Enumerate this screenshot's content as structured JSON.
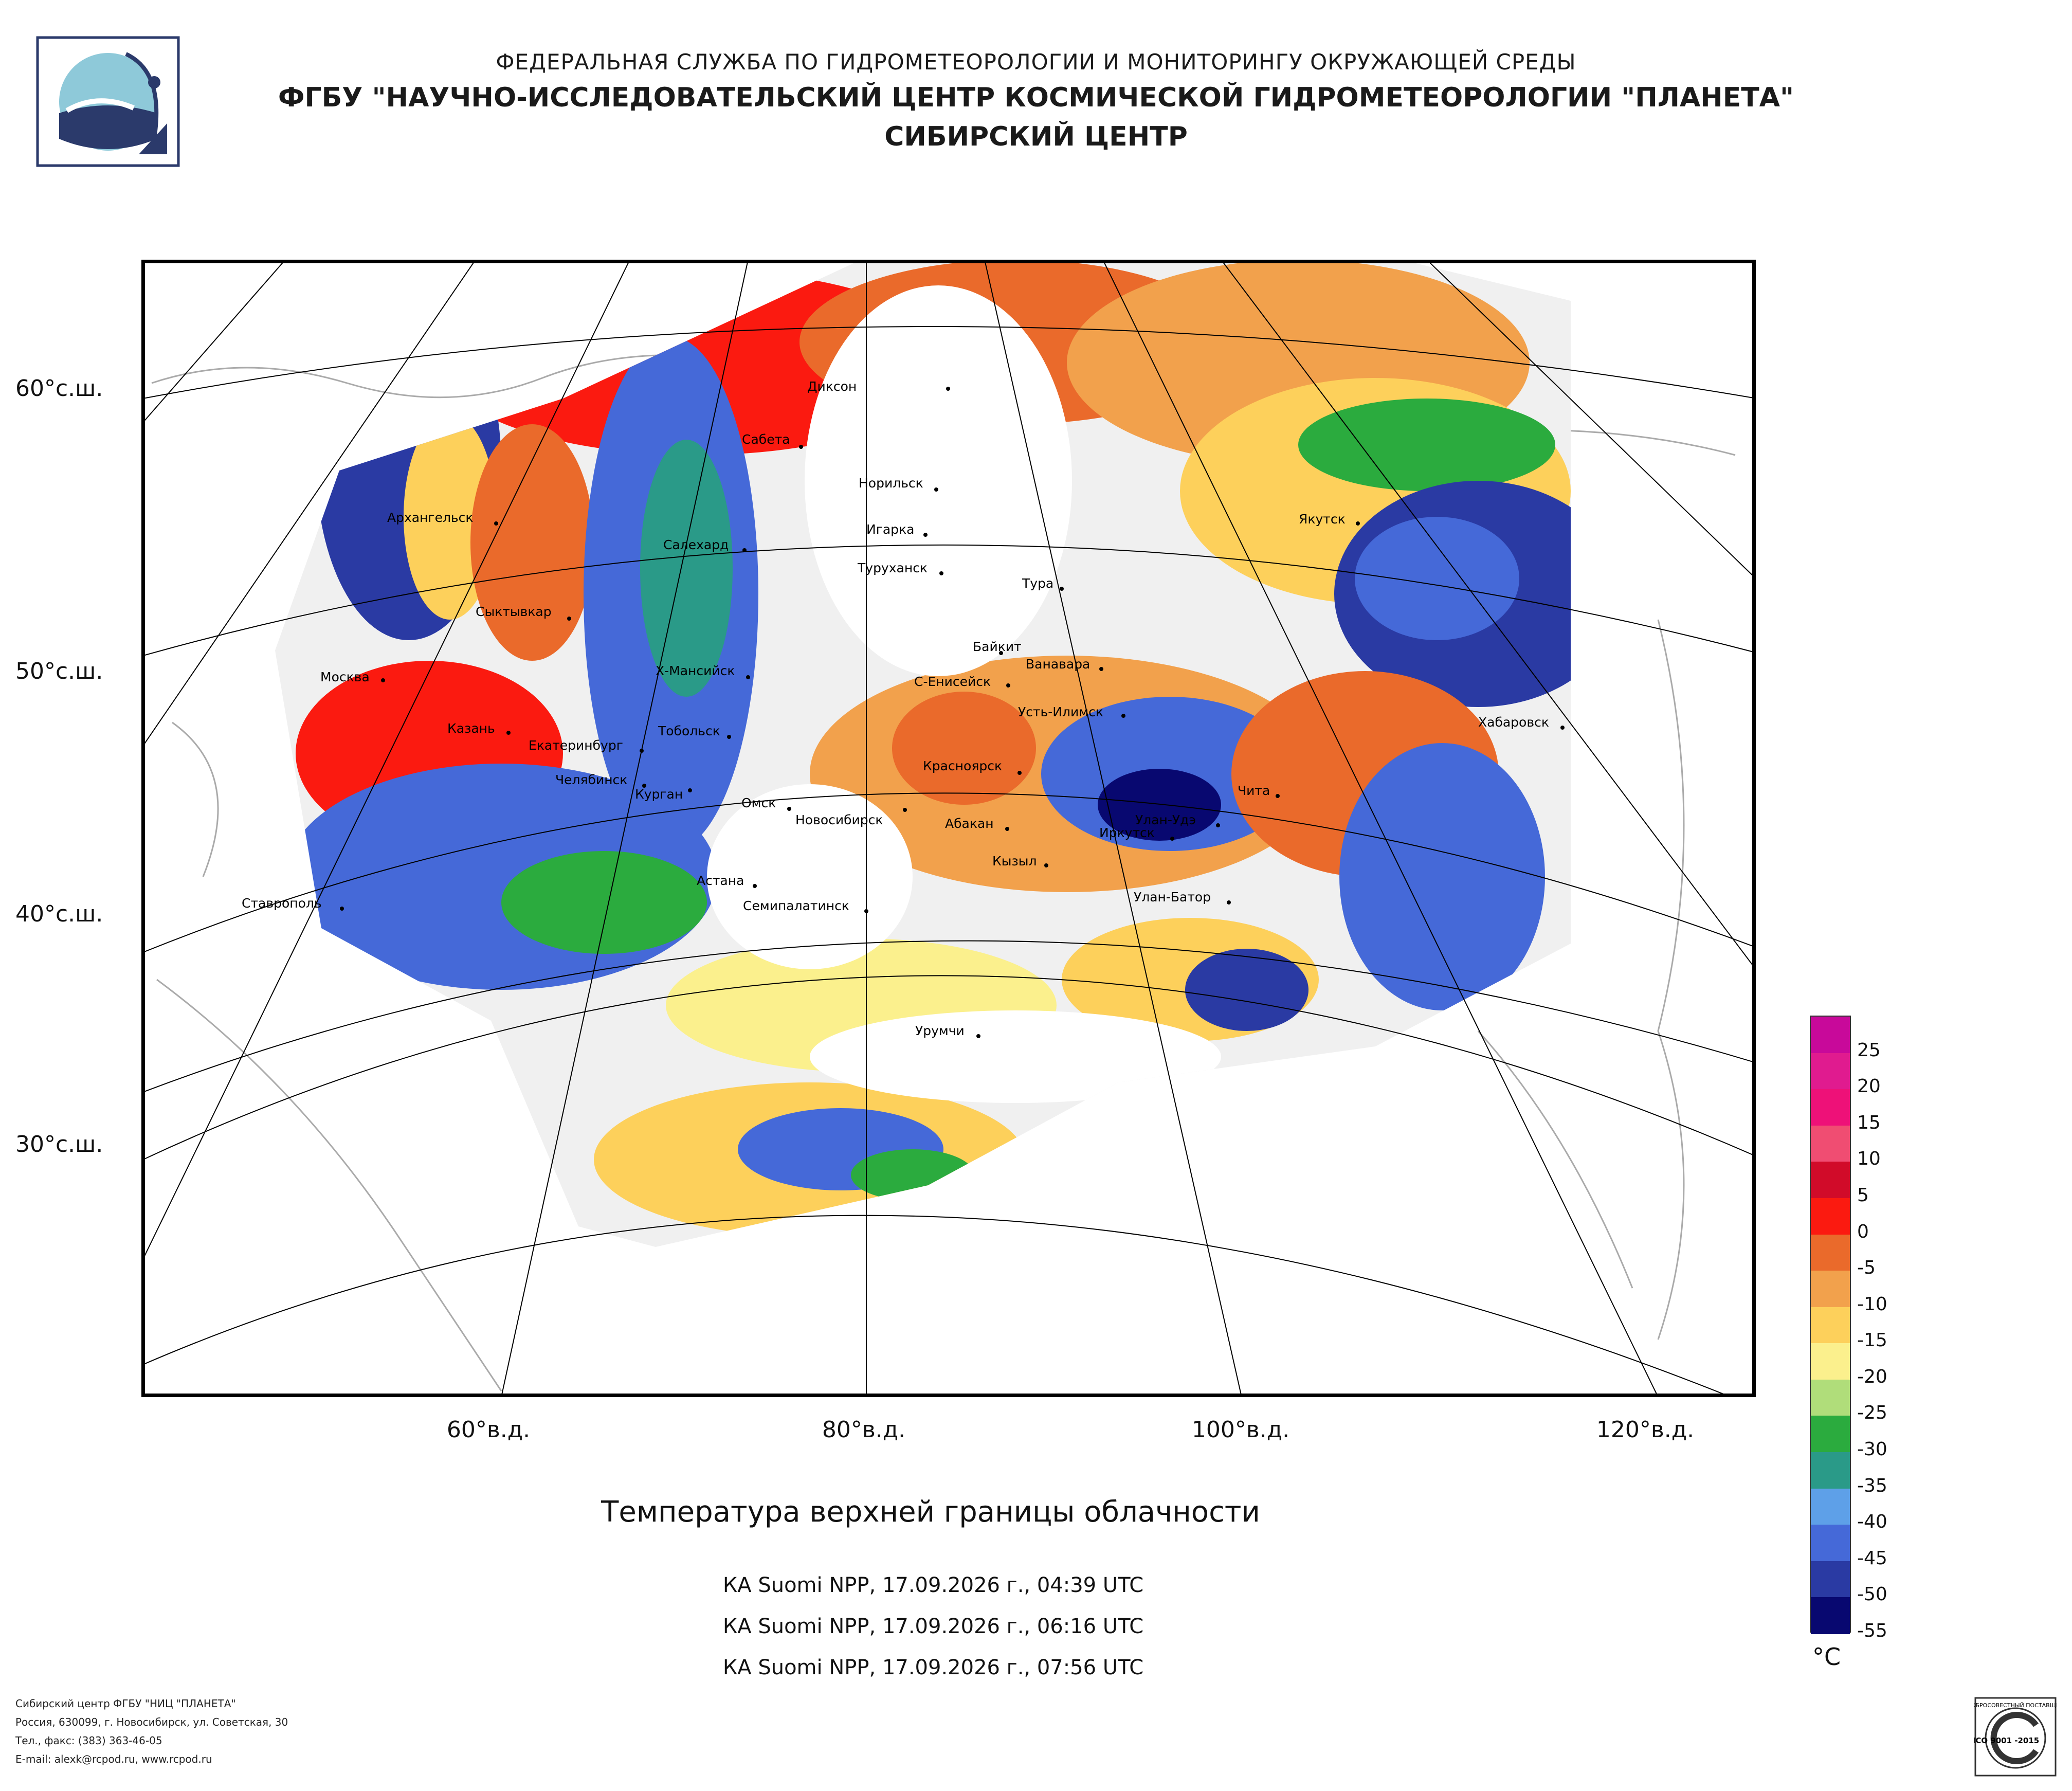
{
  "header": {
    "line1": "ФЕДЕРАЛЬНАЯ СЛУЖБА ПО ГИДРОМЕТЕОРОЛОГИИ И МОНИТОРИНГУ ОКРУЖАЮЩЕЙ СРЕДЫ",
    "line2": "ФГБУ \"НАУЧНО-ИССЛЕДОВАТЕЛЬСКИЙ ЦЕНТР КОСМИЧЕСКОЙ ГИДРОМЕТЕОРОЛОГИИ \"ПЛАНЕТА\"",
    "line3": "СИБИРСКИЙ ЦЕНТР"
  },
  "map": {
    "lat_labels": [
      "60°с.ш.",
      "50°с.ш.",
      "40°с.ш.",
      "30°с.ш."
    ],
    "lon_labels": [
      "60°в.д.",
      "80°в.д.",
      "100°в.д.",
      "120°в.д."
    ],
    "cities": [
      "Диксон",
      "Сабета",
      "Норильск",
      "Игарка",
      "Туруханск",
      "Тура",
      "Архангельск",
      "Салехард",
      "Сыктывкар",
      "Москва",
      "Х-Мансийск",
      "Байкит",
      "Ванавара",
      "С-Енисейск",
      "Усть-Илимск",
      "Якутск",
      "Хабаровск",
      "Казань",
      "Тобольск",
      "Екатеринбург",
      "Челябинск",
      "Курган",
      "Омск",
      "Новосибирск",
      "Красноярск",
      "Абакан",
      "Иркутск",
      "Улан-Удэ",
      "Чита",
      "Кызыл",
      "Астана",
      "Семипалатинск",
      "Улан-Батор",
      "Ставрополь",
      "Урумчи"
    ]
  },
  "title": "Температура верхней границы облачности",
  "satellite_passes": [
    "КА Suomi NPP, 17.09.2026 г., 04:39 UTC",
    "КА Suomi NPP, 17.09.2026 г., 06:16 UTC",
    "КА Suomi NPP, 17.09.2026 г., 07:56 UTC"
  ],
  "legend": {
    "unit": "°C",
    "ticks": [
      "25",
      "20",
      "15",
      "10",
      "5",
      "0",
      "-5",
      "-10",
      "-15",
      "-20",
      "-25",
      "-30",
      "-35",
      "-40",
      "-45",
      "-50",
      "-55"
    ],
    "colors": [
      "#c8099a",
      "#e01b8f",
      "#ee1178",
      "#f04d72",
      "#d10b29",
      "#fb1a10",
      "#ea6a2b",
      "#f2a14c",
      "#fdd05b",
      "#fbf08d",
      "#b0dd7a",
      "#2bab3e",
      "#2a9a88",
      "#5ea0e8",
      "#4569d8",
      "#2a3aa3",
      "#080870"
    ]
  },
  "footer": {
    "line1": "Сибирский центр ФГБУ \"НИЦ \"ПЛАНЕТА\"",
    "line2": "Россия, 630099, г. Новосибирск, ул. Советская, 30",
    "line3": "Тел., факс: (383) 363-46-05",
    "line4": "E-mail: alexk@rcpod.ru, www.rcpod.ru"
  },
  "iso_badge": {
    "top": "ДОБРОСОВЕСТНЫЙ ПОСТАВЩИК",
    "mid": "ИСО 9001 -2015"
  }
}
